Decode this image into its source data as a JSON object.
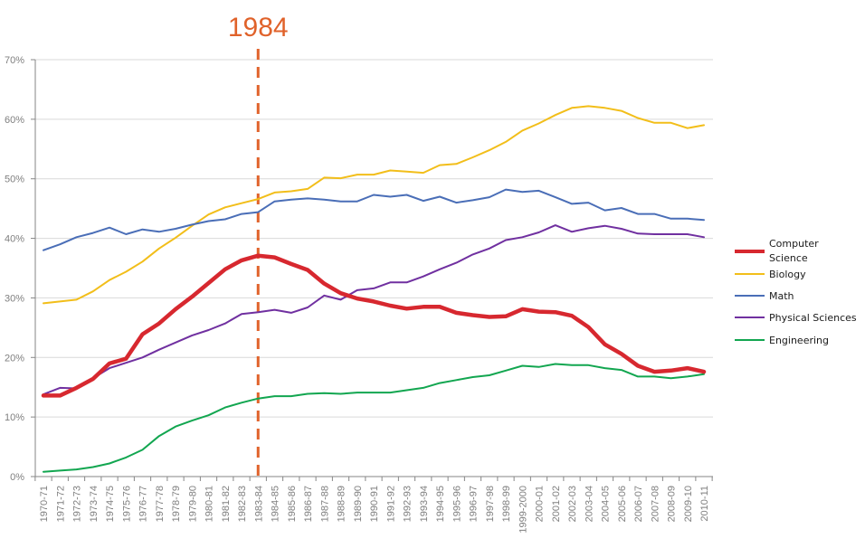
{
  "chart_data": {
    "type": "line",
    "title": "",
    "xlabel": "",
    "ylabel": "",
    "ylim": [
      0,
      70
    ],
    "yticks": [
      "0%",
      "10%",
      "20%",
      "30%",
      "40%",
      "50%",
      "60%",
      "70%"
    ],
    "grid": true,
    "legend_position": "right",
    "categories": [
      "1970-71",
      "1971-72",
      "1972-73",
      "1973-74",
      "1974-75",
      "1975-76",
      "1976-77",
      "1977-78",
      "1978-79",
      "1979-80",
      "1980-81",
      "1981-82",
      "1982-83",
      "1983-84",
      "1984-85",
      "1985-86",
      "1986-87",
      "1987-88",
      "1988-89",
      "1989-90",
      "1990-91",
      "1991-92",
      "1992-93",
      "1993-94",
      "1994-95",
      "1995-96",
      "1996-97",
      "1997-98",
      "1998-99",
      "1999-2000",
      "2000-01",
      "2001-02",
      "2002-03",
      "2003-04",
      "2004-05",
      "2005-06",
      "2006-07",
      "2007-08",
      "2008-09",
      "2009-10",
      "2010-11"
    ],
    "series": [
      {
        "name": "Computer Science",
        "color": "#d7282f",
        "emphasis": true,
        "values": [
          13.6,
          13.6,
          14.9,
          16.4,
          19.0,
          19.8,
          23.9,
          25.7,
          28.1,
          30.2,
          32.5,
          34.8,
          36.3,
          37.1,
          36.8,
          35.7,
          34.7,
          32.4,
          30.8,
          29.9,
          29.4,
          28.7,
          28.2,
          28.5,
          28.5,
          27.5,
          27.1,
          26.8,
          26.9,
          28.1,
          27.7,
          27.6,
          27.0,
          25.1,
          22.2,
          20.6,
          18.6,
          17.6,
          17.8,
          18.2,
          17.6
        ]
      },
      {
        "name": "Biology",
        "color": "#f2be1a",
        "emphasis": false,
        "values": [
          29.1,
          29.4,
          29.7,
          31.1,
          33.0,
          34.4,
          36.1,
          38.3,
          40.1,
          42.1,
          44.0,
          45.2,
          45.9,
          46.6,
          47.7,
          47.9,
          48.3,
          50.2,
          50.1,
          50.7,
          50.7,
          51.4,
          51.2,
          51.0,
          52.3,
          52.5,
          53.6,
          54.8,
          56.2,
          58.1,
          59.3,
          60.7,
          61.9,
          62.2,
          61.9,
          61.4,
          60.2,
          59.4,
          59.4,
          58.5,
          59.0
        ]
      },
      {
        "name": "Math",
        "color": "#4a6eb7",
        "emphasis": false,
        "values": [
          38.0,
          39.0,
          40.2,
          40.9,
          41.8,
          40.7,
          41.5,
          41.1,
          41.6,
          42.3,
          42.9,
          43.2,
          44.1,
          44.4,
          46.2,
          46.5,
          46.7,
          46.5,
          46.2,
          46.2,
          47.3,
          47.0,
          47.3,
          46.3,
          47.0,
          46.0,
          46.4,
          46.9,
          48.2,
          47.8,
          48.0,
          46.9,
          45.8,
          46.0,
          44.7,
          45.1,
          44.1,
          44.1,
          43.3,
          43.3,
          43.1
        ]
      },
      {
        "name": "Physical Sciences",
        "color": "#7030a0",
        "emphasis": false,
        "values": [
          13.8,
          14.9,
          14.8,
          16.5,
          18.2,
          19.1,
          20.0,
          21.3,
          22.5,
          23.7,
          24.6,
          25.7,
          27.3,
          27.6,
          28.0,
          27.5,
          28.4,
          30.4,
          29.7,
          31.3,
          31.6,
          32.6,
          32.6,
          33.6,
          34.8,
          35.9,
          37.3,
          38.3,
          39.7,
          40.2,
          41.0,
          42.2,
          41.1,
          41.7,
          42.1,
          41.6,
          40.8,
          40.7,
          40.7,
          40.7,
          40.2
        ]
      },
      {
        "name": "Engineering",
        "color": "#12a650",
        "emphasis": false,
        "values": [
          0.8,
          1.0,
          1.2,
          1.6,
          2.2,
          3.2,
          4.5,
          6.8,
          8.4,
          9.4,
          10.3,
          11.6,
          12.4,
          13.1,
          13.5,
          13.5,
          13.9,
          14.0,
          13.9,
          14.1,
          14.1,
          14.1,
          14.5,
          14.9,
          15.7,
          16.2,
          16.7,
          17.0,
          17.8,
          18.6,
          18.4,
          18.9,
          18.7,
          18.7,
          18.2,
          17.9,
          16.8,
          16.8,
          16.5,
          16.8,
          17.2
        ]
      }
    ],
    "annotations": [
      {
        "type": "vertical-dashed-line",
        "at_category": "1983-84",
        "label": "1984",
        "color": "#e0622a"
      }
    ]
  }
}
